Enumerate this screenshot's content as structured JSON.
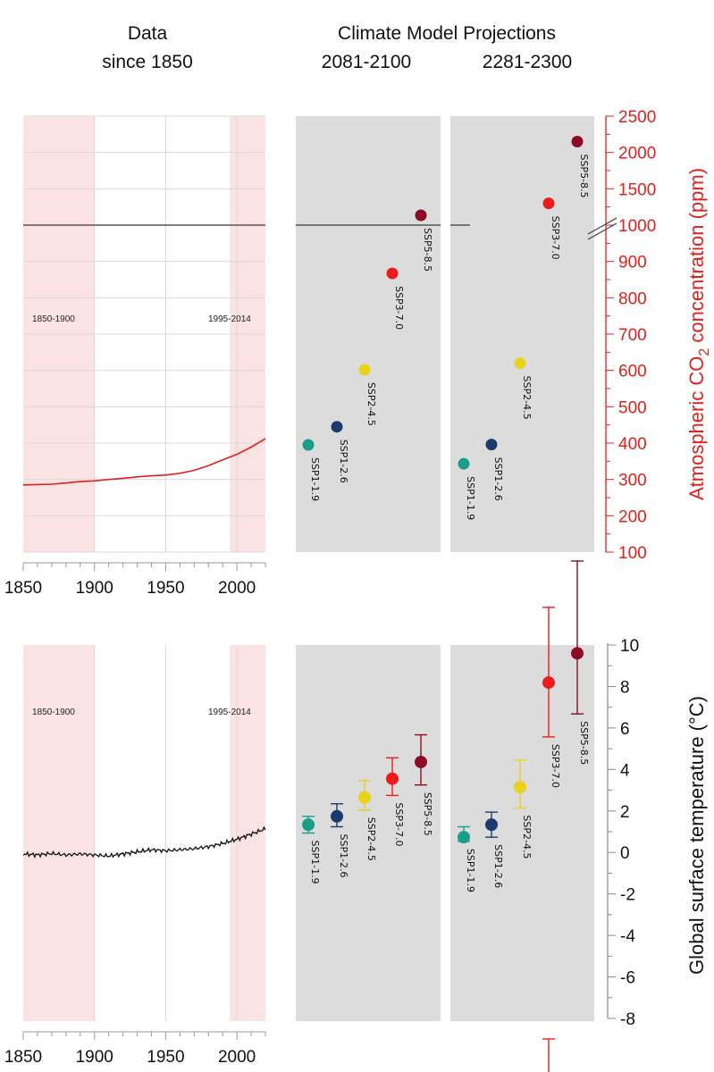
{
  "header": {
    "data_title": "Data",
    "data_subtitle": "since 1850",
    "proj_title": "Climate Model Projections",
    "period1": "2081-2100",
    "period2": "2281-2300"
  },
  "chart_data": [
    {
      "type": "line+scatter",
      "name": "co2",
      "ylabel": "Atmospheric CO2 concentration (ppm)",
      "ylabel_main": "Atmospheric CO",
      "ylabel_sub": "2",
      "ylabel_end": " concentration (ppm)",
      "color": "#e0201a",
      "y_ticks_lower": [
        "100",
        "200",
        "300",
        "400",
        "500",
        "600",
        "700",
        "800",
        "900",
        "1000"
      ],
      "y_ticks_upper": [
        "1500",
        "2000",
        "2500"
      ],
      "axis_break": "1000",
      "x_ticks": [
        "1850",
        "1900",
        "1950",
        "2000"
      ],
      "xlim": [
        1850,
        2020
      ],
      "shaded_periods": [
        {
          "label": "1850-1900",
          "start": 1850,
          "end": 1900
        },
        {
          "label": "1995-2014",
          "start": 1995,
          "end": 2014
        }
      ],
      "historical": {
        "x": [
          1850,
          1860,
          1870,
          1880,
          1890,
          1900,
          1910,
          1920,
          1930,
          1940,
          1950,
          1960,
          1970,
          1980,
          1990,
          2000,
          2010,
          2020
        ],
        "y": [
          285,
          286,
          287,
          290,
          294,
          296,
          300,
          303,
          307,
          310,
          312,
          317,
          325,
          338,
          354,
          369,
          389,
          412
        ]
      },
      "projections": {
        "2081-2100": [
          {
            "scenario": "SSP1-1.9",
            "value": 395,
            "color": "#1a9e8a"
          },
          {
            "scenario": "SSP1-2.6",
            "value": 445,
            "color": "#1c3a6e"
          },
          {
            "scenario": "SSP2-4.5",
            "value": 602,
            "color": "#e8d21a"
          },
          {
            "scenario": "SSP3-7.0",
            "value": 867,
            "color": "#ec1c1c"
          },
          {
            "scenario": "SSP5-8.5",
            "value": 1135,
            "color": "#8c0c24"
          }
        ],
        "2281-2300": [
          {
            "scenario": "SSP1-1.9",
            "value": 343,
            "color": "#1a9e8a"
          },
          {
            "scenario": "SSP1-2.6",
            "value": 396,
            "color": "#1c3a6e"
          },
          {
            "scenario": "SSP2-4.5",
            "value": 620,
            "color": "#e8d21a"
          },
          {
            "scenario": "SSP3-7.0",
            "value": 1300,
            "color": "#ec1c1c"
          },
          {
            "scenario": "SSP5-8.5",
            "value": 2150,
            "color": "#8c0c24"
          }
        ]
      }
    },
    {
      "type": "line+errorbar",
      "name": "temperature",
      "ylabel": "Global surface temperature (°C)",
      "color": "#111111",
      "y_ticks": [
        "-8",
        "-6",
        "-4",
        "-2",
        "0",
        "2",
        "4",
        "6",
        "8",
        "10"
      ],
      "ylim": [
        -8,
        10
      ],
      "x_ticks": [
        "1850",
        "1900",
        "1950",
        "2000"
      ],
      "xlim": [
        1850,
        2020
      ],
      "shaded_periods": [
        {
          "label": "1850-1900",
          "start": 1850,
          "end": 1900
        },
        {
          "label": "1995-2014",
          "start": 1995,
          "end": 2014
        }
      ],
      "historical": {
        "x": [
          1850,
          1860,
          1870,
          1880,
          1890,
          1900,
          1910,
          1920,
          1930,
          1940,
          1950,
          1960,
          1970,
          1980,
          1990,
          2000,
          2010,
          2020
        ],
        "y": [
          0.0,
          -0.05,
          0.02,
          -0.05,
          0.0,
          -0.05,
          -0.1,
          0.0,
          0.1,
          0.2,
          0.15,
          0.2,
          0.25,
          0.35,
          0.5,
          0.7,
          0.95,
          1.2
        ]
      },
      "projections": {
        "2081-2100": [
          {
            "scenario": "SSP1-1.9",
            "value": 1.4,
            "low": 1.0,
            "high": 1.8,
            "color": "#1a9e8a"
          },
          {
            "scenario": "SSP1-2.6",
            "value": 1.8,
            "low": 1.3,
            "high": 2.4,
            "color": "#1c3a6e"
          },
          {
            "scenario": "SSP2-4.5",
            "value": 2.7,
            "low": 2.1,
            "high": 3.5,
            "color": "#e8d21a"
          },
          {
            "scenario": "SSP3-7.0",
            "value": 3.6,
            "low": 2.8,
            "high": 4.6,
            "color": "#ec1c1c"
          },
          {
            "scenario": "SSP5-8.5",
            "value": 4.4,
            "low": 3.3,
            "high": 5.7,
            "color": "#8c0c24"
          }
        ],
        "2281-2300": [
          {
            "scenario": "SSP1-1.9",
            "value": 0.8,
            "low": 0.6,
            "high": 1.3,
            "color": "#1a9e8a"
          },
          {
            "scenario": "SSP1-2.6",
            "value": 1.4,
            "low": 0.8,
            "high": 2.0,
            "color": "#1c3a6e"
          },
          {
            "scenario": "SSP2-4.5",
            "value": 3.2,
            "low": 2.2,
            "high": 4.5,
            "color": "#e8d21a"
          },
          {
            "scenario": "SSP3-7.0",
            "value": 8.2,
            "low": 5.6,
            "high": 11.8,
            "color": "#ec1c1c"
          },
          {
            "scenario": "SSP5-8.5",
            "value": 9.6,
            "low": 6.7,
            "high": 14.5,
            "color": "#8c0c24"
          }
        ]
      }
    }
  ]
}
